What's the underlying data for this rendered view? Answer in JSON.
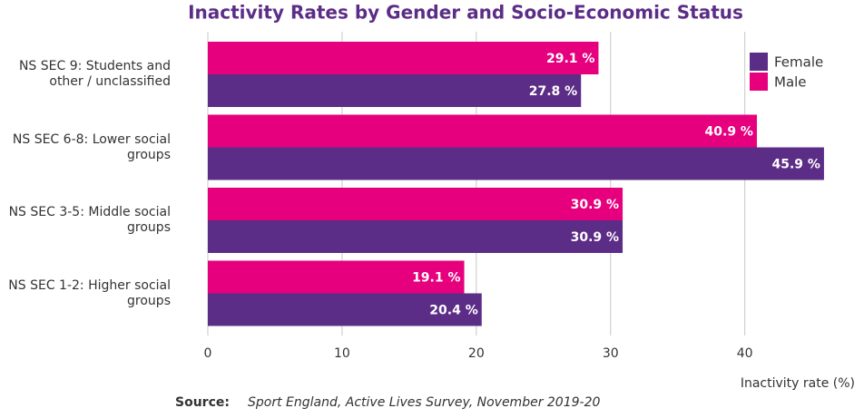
{
  "chart_data": {
    "type": "hbar",
    "title": "Inactivity Rates by Gender and Socio-Economic Status",
    "categories": [
      "NS SEC 9: Students and other / unclassified",
      "NS SEC 6-8: Lower social groups",
      "NS SEC 3-5: Middle social groups",
      "NS SEC 1-2: Higher social groups"
    ],
    "series": [
      {
        "name": "Female",
        "color": "#5c2d87",
        "values": [
          27.8,
          45.9,
          30.9,
          20.4
        ],
        "value_labels": [
          "27.8 %",
          "45.9 %",
          "30.9 %",
          "20.4 %"
        ]
      },
      {
        "name": "Male",
        "color": "#e6007e",
        "values": [
          29.1,
          40.9,
          30.9,
          19.1
        ],
        "value_labels": [
          "29.1 %",
          "40.9 %",
          "30.9 %",
          "19.1 %"
        ]
      }
    ],
    "xlabel": "Inactivity rate (%)",
    "xlim": [
      0,
      48
    ],
    "xticks": [
      0,
      10,
      20,
      30,
      40
    ],
    "grid": true,
    "legend": "top-right",
    "source_label": "Source:",
    "source": "Sport England, Active Lives Survey, November 2019-20"
  }
}
